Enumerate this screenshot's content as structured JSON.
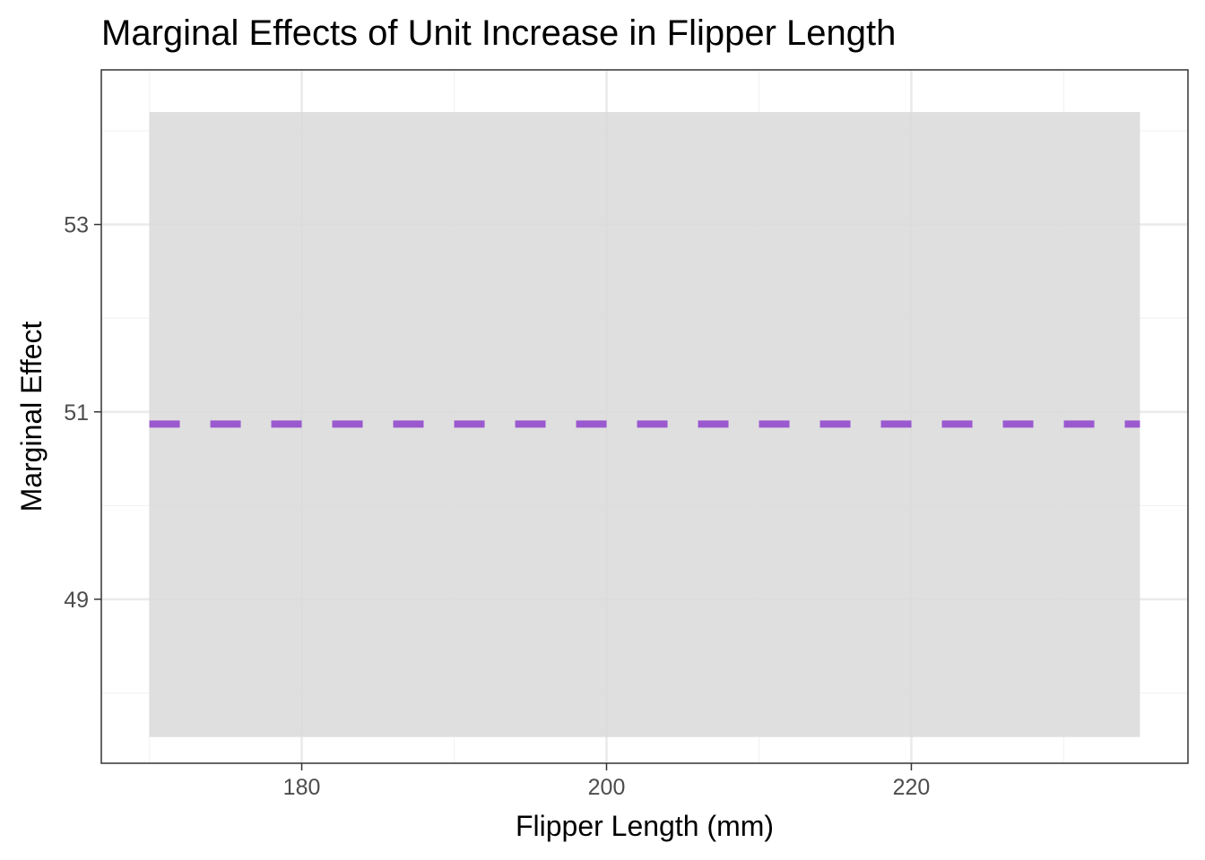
{
  "chart_data": {
    "type": "area",
    "title": "Marginal Effects of Unit Increase in Flipper Length",
    "xlabel": "Flipper Length (mm)",
    "ylabel": "Marginal Effect",
    "xlim": [
      166.85,
      238.15
    ],
    "ylim": [
      47.25,
      54.65
    ],
    "x_ticks": [
      180,
      200,
      220
    ],
    "x_minor_ticks": [
      170,
      190,
      210,
      230
    ],
    "y_ticks": [
      49,
      51,
      53
    ],
    "y_minor_ticks": [
      48,
      50,
      52,
      54
    ],
    "grid": true,
    "legend": "none",
    "series": [
      {
        "type": "line",
        "linestyle": "dashed",
        "color": "#9b59d0",
        "x": [
          170,
          235
        ],
        "y": [
          50.87,
          50.87
        ]
      },
      {
        "type": "ribbon",
        "color": "#d9d9d9",
        "x": [
          170,
          235
        ],
        "lower": [
          47.53,
          47.53
        ],
        "upper": [
          54.2,
          54.2
        ]
      }
    ],
    "colors": {
      "ribbon": "#d9d9d9",
      "line": "#9b59d0",
      "grid_major": "#ebebeb",
      "grid_minor": "#f3f3f3",
      "panel_border": "#333333"
    }
  }
}
